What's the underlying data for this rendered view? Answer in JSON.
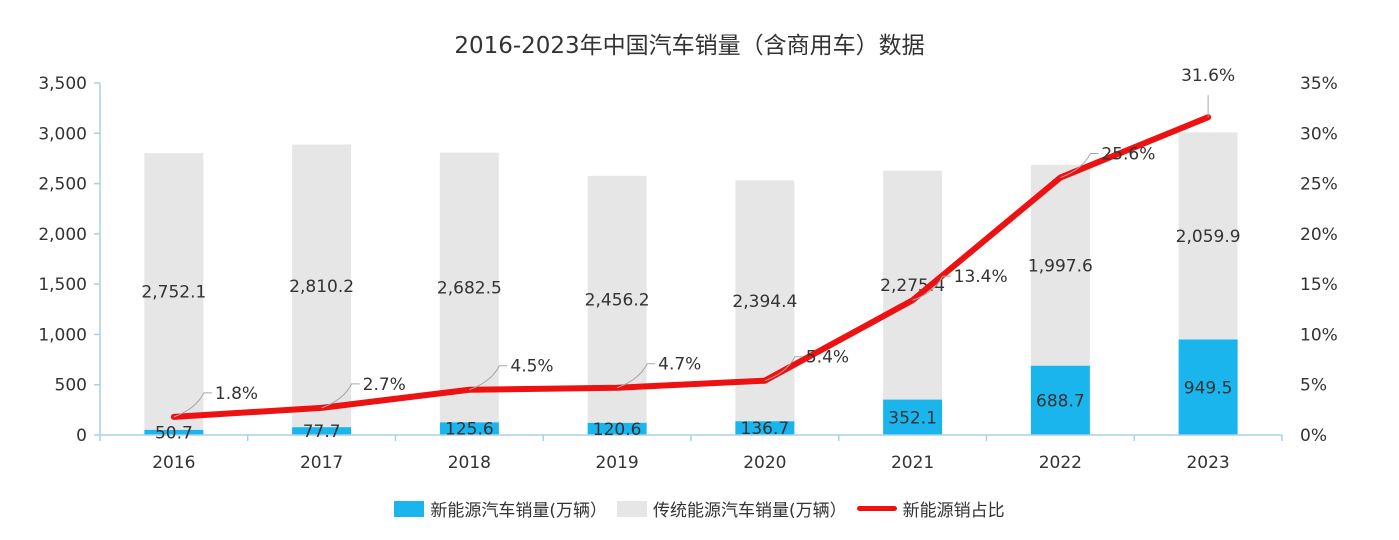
{
  "chart_data": {
    "type": "bar",
    "title": "2016-2023年中国汽车销量（含商用车）数据",
    "categories": [
      "2016",
      "2017",
      "2018",
      "2019",
      "2020",
      "2021",
      "2022",
      "2023"
    ],
    "series": [
      {
        "name": "新能源汽车销量(万辆）",
        "type": "bar",
        "stack": "total",
        "color": "#1ab5ec",
        "values": [
          50.7,
          77.7,
          125.6,
          120.6,
          136.7,
          352.1,
          688.7,
          949.5
        ],
        "labels": [
          "50.7",
          "77.7",
          "125.6",
          "120.6",
          "136.7",
          "352.1",
          "688.7",
          "949.5"
        ]
      },
      {
        "name": "传统能源汽车销量(万辆）",
        "type": "bar",
        "stack": "total",
        "color": "#e6e6e6",
        "values": [
          2752.1,
          2810.2,
          2682.5,
          2456.2,
          2394.4,
          2275.4,
          1997.6,
          2059.9
        ],
        "labels": [
          "2,752.1",
          "2,810.2",
          "2,682.5",
          "2,456.2",
          "2,394.4",
          "2,275.4",
          "1,997.6",
          "2,059.9"
        ]
      },
      {
        "name": "新能源销占比",
        "type": "line",
        "axis": "right",
        "color": "#ee1111",
        "values": [
          1.8,
          2.7,
          4.5,
          4.7,
          5.4,
          13.4,
          25.6,
          31.6
        ],
        "labels": [
          "1.8%",
          "2.7%",
          "4.5%",
          "4.7%",
          "5.4%",
          "13.4%",
          "25.6%",
          "31.6%"
        ]
      }
    ],
    "ylim": [
      0,
      3500
    ],
    "yticks": [
      "0",
      "500",
      "1,000",
      "1,500",
      "2,000",
      "2,500",
      "3,000",
      "3,500"
    ],
    "y2lim": [
      0,
      35
    ],
    "y2ticks": [
      "0%",
      "5%",
      "10%",
      "15%",
      "20%",
      "25%",
      "30%",
      "35%"
    ],
    "xlabel": "",
    "ylabel": "",
    "y2label": "",
    "grid": false,
    "legend_position": "bottom",
    "axis_color": "#a8d0ec"
  }
}
